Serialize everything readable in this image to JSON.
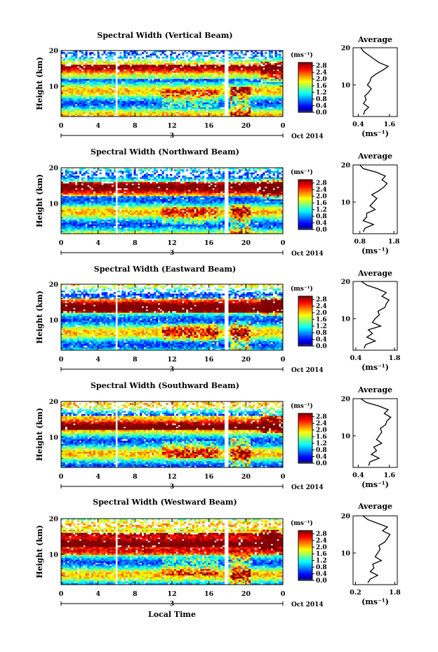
{
  "figure": {
    "xlabel": "Local Time",
    "date_label": "Oct 2014",
    "day_label": "3",
    "cbar_unit": "(ms⁻¹)",
    "avg_title": "Average",
    "avg_xlabel": "(ms⁻¹)"
  },
  "chart_data": [
    {
      "type": "heatmap",
      "title": "Spectral Width (Vertical Beam)",
      "ylabel": "Height (km)",
      "x_ticks": [
        "0",
        "4",
        "8",
        "12",
        "16",
        "20",
        "0"
      ],
      "xlim": [
        0,
        24
      ],
      "y_ticks": [
        "10",
        "20"
      ],
      "ylim": [
        1.5,
        20
      ],
      "gaps_hours": [
        [
          5.8,
          6.0
        ],
        [
          17.6,
          18.0
        ]
      ],
      "colorbar": {
        "ticks": [
          "0.0",
          "0.4",
          "0.8",
          "1.2",
          "1.6",
          "2.0",
          "2.4",
          "2.8"
        ],
        "range": [
          0.0,
          3.0
        ]
      },
      "average": {
        "title": "Average",
        "x_ticks": [
          "0.4",
          "1.6"
        ],
        "xlim": [
          0.2,
          1.9
        ],
        "y_ticks": [
          "10",
          "20"
        ],
        "height_km": [
          2,
          3,
          4,
          5,
          6,
          7,
          8,
          9,
          10,
          11,
          12,
          13,
          14,
          15,
          16,
          17,
          18,
          19,
          20
        ],
        "values": [
          0.6,
          0.65,
          0.8,
          0.6,
          0.7,
          0.65,
          0.8,
          0.9,
          0.75,
          0.85,
          0.9,
          1.1,
          1.35,
          1.55,
          1.2,
          1.0,
          0.8,
          0.6,
          0.5
        ]
      }
    },
    {
      "type": "heatmap",
      "title": "Spectral Width (Northward Beam)",
      "ylabel": "Height (km)",
      "x_ticks": [
        "0",
        "4",
        "8",
        "12",
        "16",
        "20",
        "0"
      ],
      "xlim": [
        0,
        24
      ],
      "y_ticks": [
        "10",
        "20"
      ],
      "ylim": [
        1.5,
        20
      ],
      "gaps_hours": [
        [
          5.8,
          6.0
        ],
        [
          17.6,
          18.0
        ]
      ],
      "colorbar": {
        "ticks": [
          "0.0",
          "0.4",
          "0.8",
          "1.2",
          "1.6",
          "2.0",
          "2.4",
          "2.8"
        ],
        "range": [
          0.0,
          3.0
        ]
      },
      "average": {
        "title": "Average",
        "x_ticks": [
          "0.8",
          "1.8"
        ],
        "xlim": [
          0.6,
          1.9
        ],
        "y_ticks": [
          "10",
          "20"
        ],
        "height_km": [
          2,
          3,
          4,
          5,
          6,
          7,
          8,
          9,
          10,
          11,
          12,
          13,
          14,
          15,
          16,
          17,
          18,
          19,
          20
        ],
        "values": [
          0.9,
          0.95,
          1.2,
          0.9,
          1.0,
          1.0,
          1.25,
          1.1,
          1.2,
          1.3,
          1.15,
          1.35,
          1.5,
          1.6,
          1.45,
          1.55,
          1.3,
          0.9,
          0.8
        ]
      }
    },
    {
      "type": "heatmap",
      "title": "Spectral Width (Eastward Beam)",
      "ylabel": "Height (km)",
      "x_ticks": [
        "0",
        "4",
        "8",
        "12",
        "16",
        "20",
        "0"
      ],
      "xlim": [
        0,
        24
      ],
      "y_ticks": [
        "10",
        "20"
      ],
      "ylim": [
        1.5,
        20
      ],
      "gaps_hours": [
        [
          5.8,
          6.0
        ],
        [
          17.6,
          18.0
        ]
      ],
      "colorbar": {
        "ticks": [
          "0.0",
          "0.4",
          "0.8",
          "1.2",
          "1.6",
          "2.0",
          "2.4",
          "2.8"
        ],
        "range": [
          0.0,
          3.0
        ]
      },
      "average": {
        "title": "Average",
        "x_ticks": [
          "0.4",
          "1.8"
        ],
        "xlim": [
          0.3,
          1.9
        ],
        "y_ticks": [
          "10",
          "20"
        ],
        "height_km": [
          2,
          3,
          4,
          5,
          6,
          7,
          8,
          9,
          10,
          11,
          12,
          13,
          14,
          15,
          16,
          17,
          18,
          19,
          20
        ],
        "values": [
          0.7,
          0.75,
          1.1,
          0.8,
          1.0,
          0.85,
          1.3,
          1.0,
          1.1,
          1.25,
          1.2,
          1.45,
          1.5,
          1.6,
          1.35,
          1.5,
          1.2,
          0.8,
          0.6
        ]
      }
    },
    {
      "type": "heatmap",
      "title": "Spectral Width (Southward Beam)",
      "ylabel": "Height (km)",
      "x_ticks": [
        "0",
        "4",
        "8",
        "12",
        "16",
        "20",
        "0"
      ],
      "xlim": [
        0,
        24
      ],
      "y_ticks": [
        "10",
        "20"
      ],
      "ylim": [
        1.5,
        20
      ],
      "gaps_hours": [
        [
          5.8,
          6.0
        ],
        [
          17.6,
          18.0
        ]
      ],
      "colorbar": {
        "ticks": [
          "0.0",
          "0.4",
          "0.8",
          "1.2",
          "1.6",
          "2.0",
          "2.4",
          "2.8"
        ],
        "range": [
          0.0,
          3.0
        ]
      },
      "average": {
        "title": "Average",
        "x_ticks": [
          "0.4",
          "1.6"
        ],
        "xlim": [
          0.2,
          1.9
        ],
        "y_ticks": [
          "10",
          "20"
        ],
        "height_km": [
          2,
          3,
          4,
          5,
          6,
          7,
          8,
          9,
          10,
          11,
          12,
          13,
          14,
          15,
          16,
          17,
          18,
          19,
          20
        ],
        "values": [
          0.8,
          0.85,
          1.2,
          0.9,
          1.1,
          1.0,
          1.3,
          1.1,
          1.2,
          1.3,
          1.25,
          1.45,
          1.5,
          1.65,
          1.4,
          1.55,
          1.2,
          0.7,
          0.5
        ]
      }
    },
    {
      "type": "heatmap",
      "title": "Spectral Width (Westward Beam)",
      "ylabel": "Height (km)",
      "x_ticks": [
        "0",
        "4",
        "8",
        "12",
        "16",
        "20",
        "0"
      ],
      "xlim": [
        0,
        24
      ],
      "y_ticks": [
        "10",
        "20"
      ],
      "ylim": [
        1.5,
        20
      ],
      "gaps_hours": [
        [
          5.8,
          6.0
        ],
        [
          17.6,
          18.0
        ]
      ],
      "colorbar": {
        "ticks": [
          "0.0",
          "0.4",
          "0.8",
          "1.2",
          "1.6",
          "2.0",
          "2.4",
          "2.8"
        ],
        "range": [
          0.0,
          3.0
        ]
      },
      "average": {
        "title": "Average",
        "x_ticks": [
          "0.2",
          "1.8"
        ],
        "xlim": [
          0.1,
          1.9
        ],
        "y_ticks": [
          "10",
          "20"
        ],
        "height_km": [
          2,
          3,
          4,
          5,
          6,
          7,
          8,
          9,
          10,
          11,
          12,
          13,
          14,
          15,
          16,
          17,
          18,
          19,
          20
        ],
        "values": [
          0.7,
          0.8,
          1.1,
          0.8,
          0.95,
          0.9,
          1.25,
          1.0,
          1.1,
          1.2,
          1.15,
          1.4,
          1.5,
          1.6,
          1.3,
          1.5,
          1.1,
          0.7,
          0.5
        ]
      }
    }
  ]
}
